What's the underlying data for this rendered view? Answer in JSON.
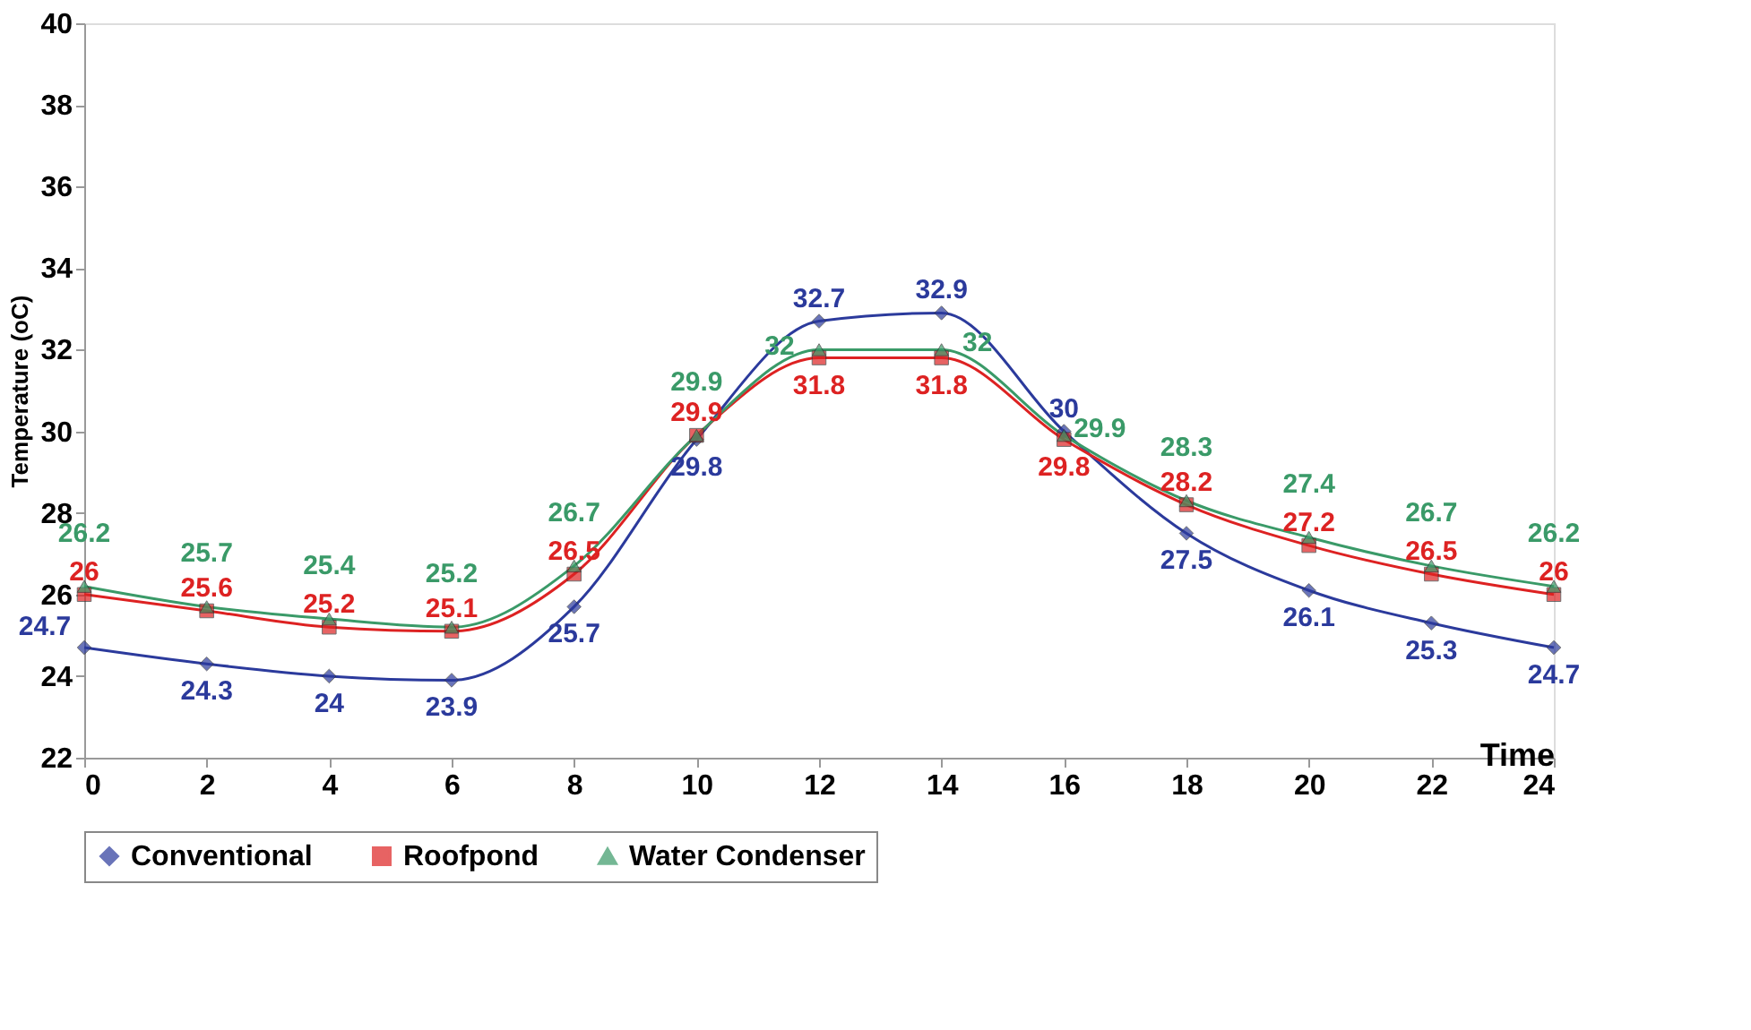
{
  "chart_data": {
    "type": "line",
    "ylabel": "Temperature (oC)",
    "xlabel": "Time",
    "x": [
      0,
      2,
      4,
      6,
      8,
      10,
      12,
      14,
      16,
      18,
      20,
      22,
      24
    ],
    "series": [
      {
        "name": "Conventional",
        "color": "#2b3a9c",
        "marker": "diamond",
        "values": [
          24.7,
          24.3,
          24,
          23.9,
          25.7,
          29.8,
          32.7,
          32.9,
          30,
          27.5,
          26.1,
          25.3,
          24.7
        ]
      },
      {
        "name": "Roofpond",
        "color": "#dd2222",
        "marker": "square",
        "values": [
          26,
          25.6,
          25.2,
          25.1,
          26.5,
          29.9,
          31.8,
          31.8,
          29.8,
          28.2,
          27.2,
          26.5,
          26
        ]
      },
      {
        "name": "Water Condenser",
        "color": "#3a9a68",
        "marker": "triangle",
        "values": [
          26.2,
          25.7,
          25.4,
          25.2,
          26.7,
          29.9,
          32,
          32,
          29.9,
          28.3,
          27.4,
          26.7,
          26.2
        ]
      }
    ],
    "xlim": [
      0,
      24
    ],
    "xticks": [
      0,
      2,
      4,
      6,
      8,
      10,
      12,
      14,
      16,
      18,
      20,
      22,
      24
    ],
    "ylim": [
      22,
      40
    ],
    "yticks": [
      22,
      24,
      26,
      28,
      30,
      32,
      34,
      36,
      38,
      40
    ],
    "grid": false,
    "legend": "bottom",
    "data_labels": true,
    "line_style": "solid"
  }
}
